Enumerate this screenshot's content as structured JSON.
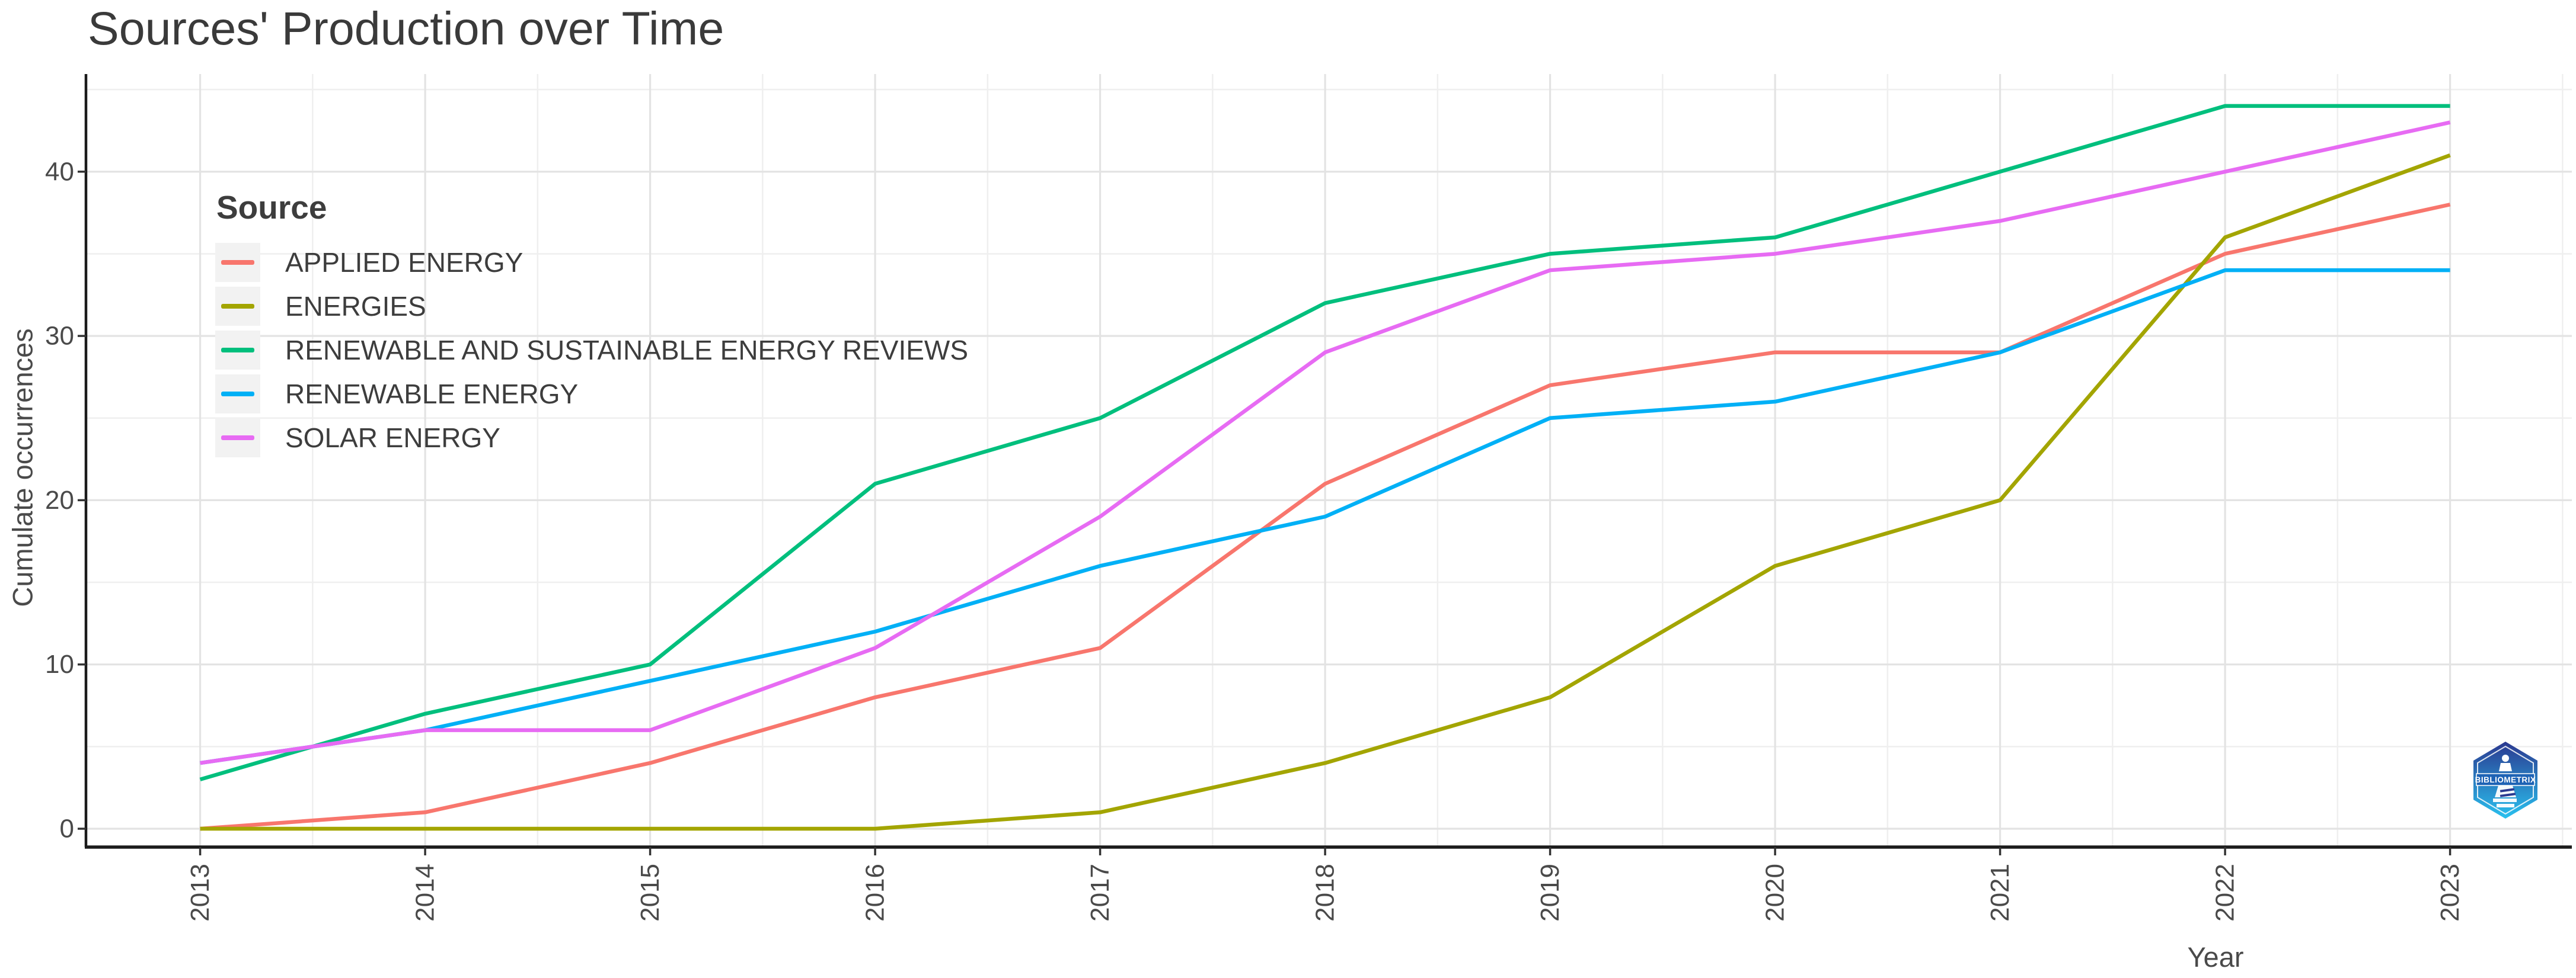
{
  "figure": {
    "background": "#ffffff",
    "axis_text_color": "#4a4a4a",
    "gridline_major_color": "#e3e3e3",
    "gridline_minor_color": "#efefef",
    "axis_line_color": "#1b1b1b",
    "legend_key_background": "#f2f2f2"
  },
  "chart_data": {
    "type": "line",
    "title": "Sources' Production over Time",
    "xlabel": "Year",
    "ylabel": "Cumulate occurrences",
    "legend_title": "Source",
    "legend_position": "top-left-inside",
    "grid": "major+minor",
    "x": [
      2013,
      2014,
      2015,
      2016,
      2017,
      2018,
      2019,
      2020,
      2021,
      2022,
      2023
    ],
    "x_tick_labels": [
      "2013",
      "2014",
      "2015",
      "2016",
      "2017",
      "2018",
      "2019",
      "2020",
      "2021",
      "2022",
      "2023"
    ],
    "y_ticks": [
      0,
      10,
      20,
      30,
      40
    ],
    "y_tick_labels": [
      "0",
      "10",
      "20",
      "30",
      "40"
    ],
    "y_minor_ticks": [
      5,
      15,
      25,
      35,
      45
    ],
    "ylim": [
      0,
      45.5
    ],
    "series": [
      {
        "name": "APPLIED ENERGY",
        "color": "#F8766D",
        "values": [
          0,
          1,
          4,
          8,
          11,
          21,
          27,
          29,
          29,
          35,
          38
        ]
      },
      {
        "name": "ENERGIES",
        "color": "#A3A500",
        "values": [
          0,
          0,
          0,
          0,
          1,
          4,
          8,
          16,
          20,
          36,
          41
        ]
      },
      {
        "name": "RENEWABLE AND SUSTAINABLE ENERGY REVIEWS",
        "color": "#00BF7D",
        "values": [
          3,
          7,
          10,
          21,
          25,
          32,
          35,
          36,
          40,
          44,
          44
        ]
      },
      {
        "name": "RENEWABLE ENERGY",
        "color": "#00B0F6",
        "values": [
          4,
          6,
          9,
          12,
          16,
          19,
          25,
          26,
          29,
          34,
          34
        ]
      },
      {
        "name": "SOLAR ENERGY",
        "color": "#E76BF3",
        "values": [
          4,
          6,
          6,
          11,
          19,
          29,
          34,
          35,
          37,
          40,
          43
        ]
      }
    ]
  },
  "watermark": {
    "label": "BIBLIOMETRIX",
    "badge_color_top": "#2b3990",
    "badge_color_bottom": "#29c1ef"
  }
}
